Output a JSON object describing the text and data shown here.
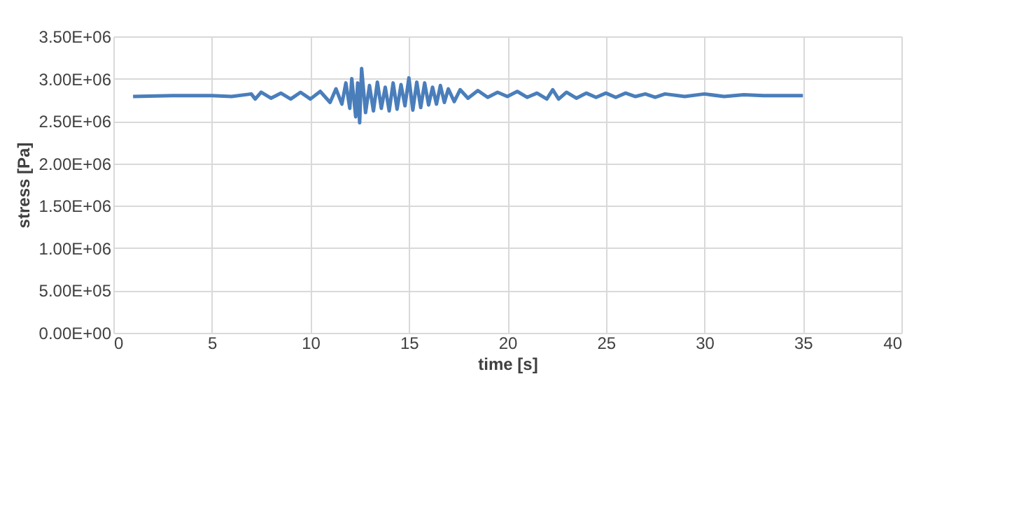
{
  "chart_data": {
    "type": "line",
    "xlabel": "time [s]",
    "ylabel": "stress [Pa]",
    "xlim": [
      0,
      40
    ],
    "xticks": [
      0,
      5,
      10,
      15,
      20,
      25,
      30,
      35,
      40
    ],
    "ylim": [
      0,
      3500000
    ],
    "yticks": [
      {
        "value": 0,
        "label": "0.00E+00"
      },
      {
        "value": 500000,
        "label": "5.00E+05"
      },
      {
        "value": 1000000,
        "label": "1.00E+06"
      },
      {
        "value": 1500000,
        "label": "1.50E+06"
      },
      {
        "value": 2000000,
        "label": "2.00E+06"
      },
      {
        "value": 2500000,
        "label": "2.50E+06"
      },
      {
        "value": 3000000,
        "label": "3.00E+06"
      },
      {
        "value": 3500000,
        "label": "3.50E+06"
      }
    ],
    "grid": true,
    "line_style": "solid",
    "series": [
      {
        "color": "#4a7ebb",
        "x": [
          1,
          3,
          5,
          6,
          7,
          7.2,
          7.5,
          8,
          8.5,
          9,
          9.5,
          10,
          10.5,
          11,
          11.3,
          11.6,
          11.8,
          12,
          12.1,
          12.3,
          12.4,
          12.5,
          12.6,
          12.8,
          13,
          13.2,
          13.4,
          13.6,
          13.8,
          14,
          14.2,
          14.4,
          14.6,
          14.8,
          15,
          15.2,
          15.4,
          15.6,
          15.8,
          16,
          16.2,
          16.4,
          16.6,
          16.8,
          17,
          17.3,
          17.6,
          18,
          18.5,
          19,
          19.5,
          20,
          20.5,
          21,
          21.5,
          22,
          22.3,
          22.6,
          23,
          23.5,
          24,
          24.5,
          25,
          25.5,
          26,
          26.5,
          27,
          27.5,
          28,
          29,
          30,
          31,
          32,
          33,
          34,
          35
        ],
        "values": [
          2790000,
          2800000,
          2800000,
          2790000,
          2820000,
          2760000,
          2840000,
          2770000,
          2830000,
          2760000,
          2840000,
          2760000,
          2850000,
          2720000,
          2880000,
          2700000,
          2950000,
          2650000,
          3000000,
          2550000,
          2950000,
          2480000,
          3120000,
          2600000,
          2920000,
          2620000,
          2960000,
          2650000,
          2900000,
          2620000,
          2950000,
          2640000,
          2930000,
          2680000,
          3010000,
          2630000,
          2960000,
          2660000,
          2950000,
          2690000,
          2900000,
          2700000,
          2920000,
          2720000,
          2880000,
          2730000,
          2870000,
          2770000,
          2860000,
          2780000,
          2840000,
          2790000,
          2850000,
          2780000,
          2830000,
          2760000,
          2870000,
          2760000,
          2840000,
          2770000,
          2830000,
          2780000,
          2830000,
          2780000,
          2830000,
          2790000,
          2820000,
          2780000,
          2820000,
          2790000,
          2820000,
          2790000,
          2810000,
          2800000,
          2800000,
          2800000
        ]
      }
    ]
  }
}
